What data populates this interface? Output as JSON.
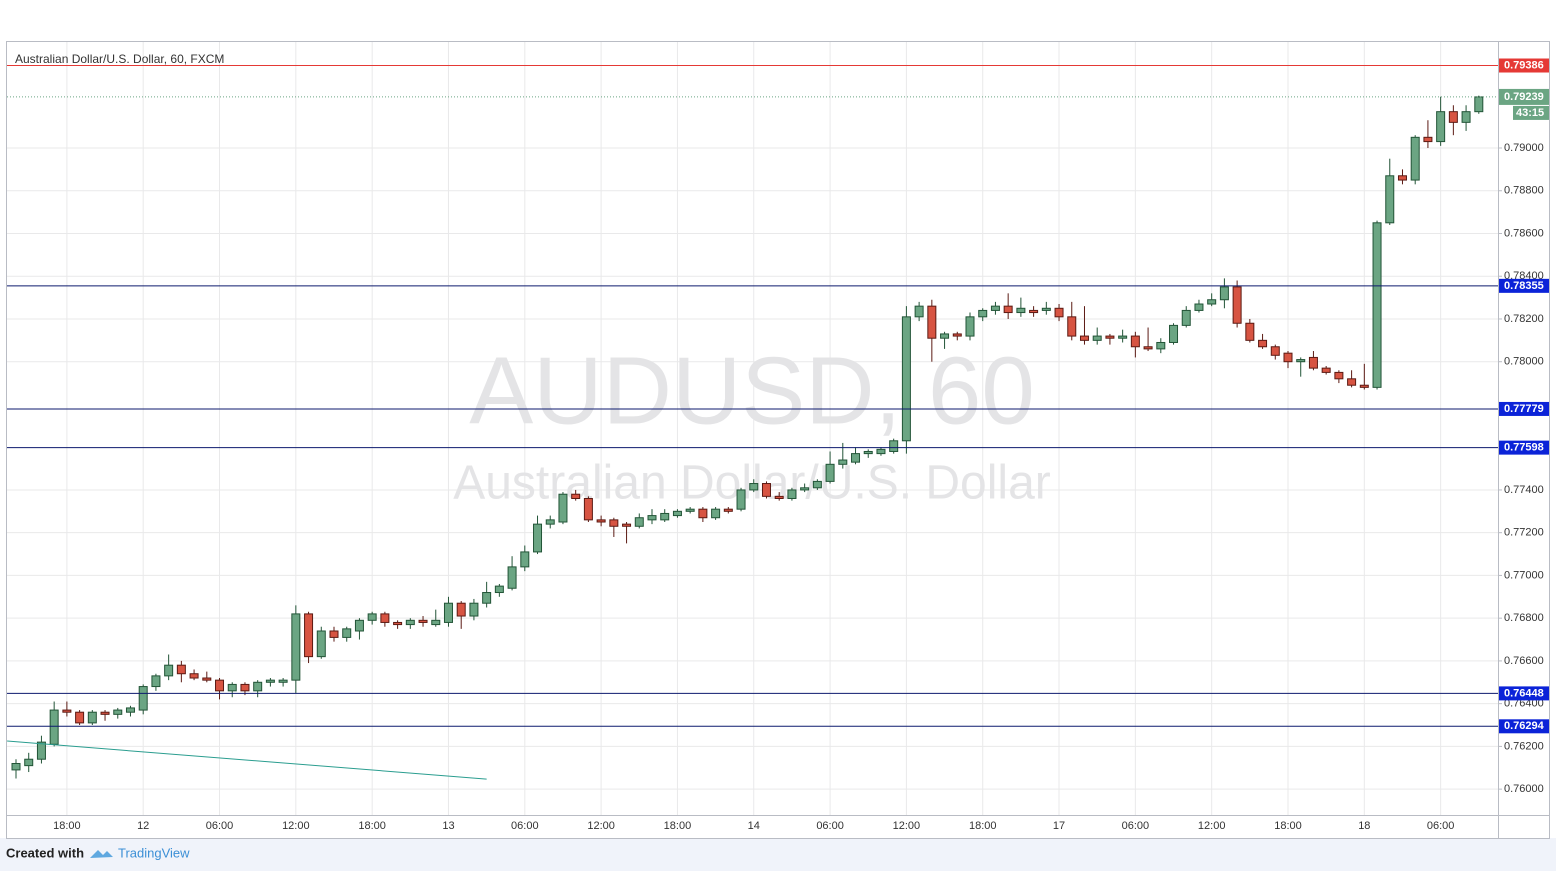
{
  "chart_data": {
    "type": "candlestick",
    "title": "Australian Dollar/U.S. Dollar, 60, FXCM",
    "watermark": "AUDUSD, 60",
    "watermark_subtitle": "Australian Dollar/U.S. Dollar",
    "categories": [
      null,
      null,
      null,
      null,
      "18:00",
      null,
      null,
      null,
      null,
      null,
      "12",
      null,
      null,
      null,
      null,
      null,
      "06:00",
      null,
      null,
      null,
      null,
      null,
      "12:00",
      null,
      null,
      null,
      null,
      null,
      "18:00",
      null,
      null,
      null,
      null,
      null,
      "13",
      null,
      null,
      null,
      null,
      null,
      "06:00",
      null,
      null,
      null,
      null,
      null,
      "12:00",
      null,
      null,
      null,
      null,
      null,
      "18:00",
      null,
      null,
      null,
      null,
      null,
      "14",
      null,
      null,
      null,
      null,
      null,
      "06:00",
      null,
      null,
      null,
      null,
      null,
      "12:00",
      null,
      null,
      null,
      null,
      null,
      "18:00",
      null,
      null,
      null,
      null,
      null,
      "17",
      null,
      null,
      null,
      null,
      null,
      "06:00",
      null,
      null,
      null,
      null,
      null,
      "12:00",
      null,
      null,
      null,
      null,
      null,
      "18:00",
      null,
      null,
      null,
      null,
      null,
      "18",
      null,
      null,
      null,
      null,
      null,
      "06:00",
      null,
      null,
      null
    ],
    "candles": [
      [
        0.7609,
        0.7614,
        0.7605,
        0.7612
      ],
      [
        0.7611,
        0.7617,
        0.7608,
        0.7614
      ],
      [
        0.7614,
        0.7625,
        0.7612,
        0.7622
      ],
      [
        0.7621,
        0.7641,
        0.762,
        0.7637
      ],
      [
        0.7637,
        0.7641,
        0.7634,
        0.7636
      ],
      [
        0.7636,
        0.7637,
        0.763,
        0.7631
      ],
      [
        0.7631,
        0.7637,
        0.763,
        0.7636
      ],
      [
        0.7636,
        0.7637,
        0.7632,
        0.7635
      ],
      [
        0.7635,
        0.7638,
        0.7633,
        0.7637
      ],
      [
        0.7636,
        0.7639,
        0.7634,
        0.7638
      ],
      [
        0.7637,
        0.7649,
        0.7635,
        0.7648
      ],
      [
        0.7648,
        0.7654,
        0.7646,
        0.7653
      ],
      [
        0.7653,
        0.7663,
        0.7651,
        0.7658
      ],
      [
        0.7658,
        0.766,
        0.765,
        0.7654
      ],
      [
        0.7654,
        0.7656,
        0.7651,
        0.7652
      ],
      [
        0.7652,
        0.7655,
        0.765,
        0.7651
      ],
      [
        0.7651,
        0.7652,
        0.7642,
        0.7646
      ],
      [
        0.7646,
        0.765,
        0.7643,
        0.7649
      ],
      [
        0.7649,
        0.765,
        0.7644,
        0.7646
      ],
      [
        0.7646,
        0.7651,
        0.7643,
        0.765
      ],
      [
        0.765,
        0.7652,
        0.7648,
        0.7651
      ],
      [
        0.765,
        0.7652,
        0.7648,
        0.7651
      ],
      [
        0.7651,
        0.7686,
        0.7645,
        0.7682
      ],
      [
        0.7682,
        0.7683,
        0.7659,
        0.7662
      ],
      [
        0.7662,
        0.7676,
        0.7661,
        0.7674
      ],
      [
        0.7674,
        0.7676,
        0.7669,
        0.7671
      ],
      [
        0.7671,
        0.7676,
        0.7669,
        0.7675
      ],
      [
        0.7674,
        0.768,
        0.767,
        0.7679
      ],
      [
        0.7679,
        0.7683,
        0.7677,
        0.7682
      ],
      [
        0.7682,
        0.7683,
        0.7676,
        0.7678
      ],
      [
        0.7678,
        0.7679,
        0.7675,
        0.7677
      ],
      [
        0.7677,
        0.768,
        0.7675,
        0.7679
      ],
      [
        0.7679,
        0.7681,
        0.7676,
        0.7678
      ],
      [
        0.7677,
        0.7684,
        0.7676,
        0.7679
      ],
      [
        0.7678,
        0.769,
        0.7676,
        0.7687
      ],
      [
        0.7687,
        0.7688,
        0.7675,
        0.7681
      ],
      [
        0.7681,
        0.7689,
        0.7679,
        0.7687
      ],
      [
        0.7687,
        0.7697,
        0.7685,
        0.7692
      ],
      [
        0.7692,
        0.7696,
        0.769,
        0.7695
      ],
      [
        0.7694,
        0.7709,
        0.7693,
        0.7704
      ],
      [
        0.7704,
        0.7714,
        0.7702,
        0.7711
      ],
      [
        0.7711,
        0.7728,
        0.771,
        0.7724
      ],
      [
        0.7724,
        0.7728,
        0.7722,
        0.7726
      ],
      [
        0.7725,
        0.7739,
        0.7724,
        0.7738
      ],
      [
        0.7738,
        0.774,
        0.7735,
        0.7736
      ],
      [
        0.7736,
        0.7737,
        0.7725,
        0.7726
      ],
      [
        0.7726,
        0.7728,
        0.7723,
        0.7725
      ],
      [
        0.7726,
        0.7727,
        0.7718,
        0.7723
      ],
      [
        0.7724,
        0.7725,
        0.7715,
        0.7723
      ],
      [
        0.7723,
        0.7729,
        0.7722,
        0.7727
      ],
      [
        0.7726,
        0.7731,
        0.7724,
        0.7728
      ],
      [
        0.7726,
        0.7731,
        0.7725,
        0.7729
      ],
      [
        0.7728,
        0.7731,
        0.7727,
        0.773
      ],
      [
        0.773,
        0.7732,
        0.7729,
        0.7731
      ],
      [
        0.7731,
        0.7732,
        0.7725,
        0.7727
      ],
      [
        0.7727,
        0.7732,
        0.7726,
        0.7731
      ],
      [
        0.7731,
        0.7732,
        0.7729,
        0.773
      ],
      [
        0.7731,
        0.7741,
        0.773,
        0.774
      ],
      [
        0.774,
        0.7745,
        0.7739,
        0.7743
      ],
      [
        0.7743,
        0.7744,
        0.7736,
        0.7737
      ],
      [
        0.7737,
        0.7739,
        0.7735,
        0.7736
      ],
      [
        0.7736,
        0.7741,
        0.7735,
        0.774
      ],
      [
        0.774,
        0.7743,
        0.7739,
        0.7741
      ],
      [
        0.7741,
        0.7745,
        0.774,
        0.7744
      ],
      [
        0.7744,
        0.7758,
        0.7743,
        0.7752
      ],
      [
        0.7752,
        0.7762,
        0.775,
        0.7754
      ],
      [
        0.7753,
        0.776,
        0.7752,
        0.7757
      ],
      [
        0.7757,
        0.7759,
        0.7755,
        0.7758
      ],
      [
        0.7757,
        0.776,
        0.7756,
        0.7759
      ],
      [
        0.7758,
        0.7764,
        0.7757,
        0.7763
      ],
      [
        0.7763,
        0.7826,
        0.7757,
        0.7821
      ],
      [
        0.7821,
        0.7828,
        0.7819,
        0.7826
      ],
      [
        0.7826,
        0.7829,
        0.78,
        0.7811
      ],
      [
        0.7811,
        0.7814,
        0.7806,
        0.7813
      ],
      [
        0.7813,
        0.7814,
        0.781,
        0.7812
      ],
      [
        0.7812,
        0.7823,
        0.781,
        0.7821
      ],
      [
        0.7821,
        0.7825,
        0.7819,
        0.7824
      ],
      [
        0.7824,
        0.7828,
        0.7822,
        0.7826
      ],
      [
        0.7826,
        0.7832,
        0.782,
        0.7823
      ],
      [
        0.7823,
        0.783,
        0.7821,
        0.7825
      ],
      [
        0.7824,
        0.7826,
        0.7821,
        0.7823
      ],
      [
        0.7824,
        0.7828,
        0.7822,
        0.7825
      ],
      [
        0.7825,
        0.7827,
        0.7819,
        0.7821
      ],
      [
        0.7821,
        0.7828,
        0.781,
        0.7812
      ],
      [
        0.7812,
        0.7826,
        0.7808,
        0.781
      ],
      [
        0.781,
        0.7816,
        0.7808,
        0.7812
      ],
      [
        0.7812,
        0.7813,
        0.7808,
        0.7811
      ],
      [
        0.7811,
        0.7815,
        0.7809,
        0.7812
      ],
      [
        0.7812,
        0.7814,
        0.7802,
        0.7807
      ],
      [
        0.7807,
        0.7816,
        0.7805,
        0.7806
      ],
      [
        0.7806,
        0.7811,
        0.7804,
        0.7809
      ],
      [
        0.7809,
        0.7818,
        0.7808,
        0.7817
      ],
      [
        0.7817,
        0.7826,
        0.7816,
        0.7824
      ],
      [
        0.7824,
        0.7829,
        0.7823,
        0.7827
      ],
      [
        0.7827,
        0.7832,
        0.7826,
        0.7829
      ],
      [
        0.7829,
        0.7839,
        0.7825,
        0.7835
      ],
      [
        0.7835,
        0.7838,
        0.7816,
        0.7818
      ],
      [
        0.7818,
        0.782,
        0.7809,
        0.781
      ],
      [
        0.781,
        0.7813,
        0.7806,
        0.7807
      ],
      [
        0.7807,
        0.7808,
        0.7801,
        0.7803
      ],
      [
        0.7804,
        0.7805,
        0.7797,
        0.78
      ],
      [
        0.78,
        0.7802,
        0.7793,
        0.7801
      ],
      [
        0.7802,
        0.7805,
        0.7796,
        0.7797
      ],
      [
        0.7797,
        0.7798,
        0.7794,
        0.7795
      ],
      [
        0.7795,
        0.7796,
        0.779,
        0.7792
      ],
      [
        0.7792,
        0.7796,
        0.7788,
        0.7789
      ],
      [
        0.7789,
        0.7799,
        0.7787,
        0.7788
      ],
      [
        0.7788,
        0.7866,
        0.7787,
        0.7865
      ],
      [
        0.7865,
        0.7895,
        0.7864,
        0.7887
      ],
      [
        0.7887,
        0.789,
        0.7883,
        0.7885
      ],
      [
        0.7885,
        0.7906,
        0.7883,
        0.7905
      ],
      [
        0.7905,
        0.7913,
        0.79,
        0.7903
      ],
      [
        0.7903,
        0.7924,
        0.7901,
        0.7917
      ],
      [
        0.7917,
        0.792,
        0.7906,
        0.7912
      ],
      [
        0.7912,
        0.792,
        0.7908,
        0.7917
      ],
      [
        0.7917,
        0.79245,
        0.7916,
        0.79239
      ]
    ],
    "up_color": "#6ba583",
    "down_color": "#d75442",
    "ylim": [
      0.75879,
      0.79496
    ],
    "yticks": [
      {
        "value": 0.76,
        "label": "0.76000"
      },
      {
        "value": 0.762,
        "label": "0.76200"
      },
      {
        "value": 0.764,
        "label": "0.76400"
      },
      {
        "value": 0.766,
        "label": "0.76600"
      },
      {
        "value": 0.768,
        "label": "0.76800"
      },
      {
        "value": 0.77,
        "label": "0.77000"
      },
      {
        "value": 0.772,
        "label": "0.77200"
      },
      {
        "value": 0.774,
        "label": "0.77400"
      },
      {
        "value": 0.78,
        "label": "0.78000"
      },
      {
        "value": 0.782,
        "label": "0.78200"
      },
      {
        "value": 0.784,
        "label": "0.78400"
      },
      {
        "value": 0.786,
        "label": "0.78600"
      },
      {
        "value": 0.788,
        "label": "0.78800"
      },
      {
        "value": 0.79,
        "label": "0.79000"
      }
    ],
    "grid": true,
    "levels": [
      {
        "value": 0.79386,
        "color": "#e53935"
      },
      {
        "value": 0.78355,
        "color": "#0d1a6e"
      },
      {
        "value": 0.77779,
        "color": "#0d1a6e"
      },
      {
        "value": 0.77598,
        "color": "#0d1a6e"
      },
      {
        "value": 0.76448,
        "color": "#0d1a6e"
      },
      {
        "value": 0.76294,
        "color": "#0d1a6e"
      }
    ],
    "last_price": 0.79239,
    "countdown": "43:15",
    "trendline": {
      "x": [
        -0.7,
        37
      ],
      "y": [
        0.76225,
        0.76047
      ],
      "color": "#2a9d8f"
    },
    "footer": {
      "text": "Created with",
      "brand": "TradingView"
    }
  }
}
